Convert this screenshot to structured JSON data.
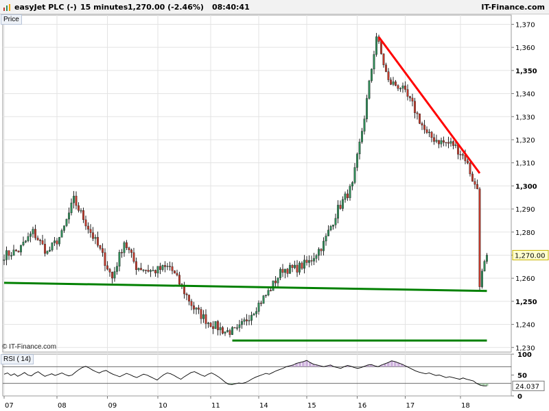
{
  "header": {
    "instrument": "easyJet PLC (-)",
    "interval": "15 minutes",
    "quote": "1,270.00 (-2.46%)",
    "time": "08:40:41",
    "brand": "IT-Finance.com"
  },
  "panels": {
    "price_label": "Price",
    "rsi_label": "RSI ( 14)",
    "copyright": "© IT-Finance.com"
  },
  "colors": {
    "bull": "#2e8b57",
    "bear": "#c0392b",
    "resistance": "#ff0000",
    "support": "#008000",
    "rsi_line": "#000000",
    "rsi_overbought_fill": "#c8a8d8",
    "rsi_oversold_fill": "#9cc8a0"
  },
  "chart_data": [
    {
      "type": "candlestick",
      "title": "",
      "ylim": [
        1228,
        1374
      ],
      "y_ticks": [
        "1,230",
        "1,240",
        "1,250",
        "1,260",
        "1,270",
        "1,280",
        "1,290",
        "1,300",
        "1,310",
        "1,320",
        "1,330",
        "1,340",
        "1,350",
        "1,360",
        "1,370"
      ],
      "bold_y_ticks": [
        "1,250",
        "1,300",
        "1,350"
      ],
      "x_tick_labels": [
        "07",
        "08",
        "09",
        "10",
        "11",
        "14",
        "15",
        "16",
        "17",
        "18"
      ],
      "last_price_label": "1,270.00",
      "last_price": 1270,
      "grid": true,
      "close_path": [
        [
          0,
          1270
        ],
        [
          6,
          1272
        ],
        [
          12,
          1280
        ],
        [
          18,
          1271
        ],
        [
          24,
          1279
        ],
        [
          29,
          1294
        ],
        [
          34,
          1284
        ],
        [
          40,
          1272
        ],
        [
          45,
          1260
        ],
        [
          50,
          1276
        ],
        [
          55,
          1265
        ],
        [
          62,
          1263
        ],
        [
          69,
          1265
        ],
        [
          79,
          1247
        ],
        [
          85,
          1241
        ],
        [
          92,
          1237
        ],
        [
          97,
          1237
        ],
        [
          103,
          1245
        ],
        [
          110,
          1254
        ],
        [
          116,
          1264
        ],
        [
          121,
          1264
        ],
        [
          127,
          1267
        ],
        [
          133,
          1275
        ],
        [
          139,
          1290
        ],
        [
          145,
          1300
        ],
        [
          150,
          1330
        ],
        [
          155,
          1365
        ],
        [
          160,
          1345
        ],
        [
          165,
          1343
        ],
        [
          170,
          1335
        ],
        [
          176,
          1322
        ],
        [
          182,
          1319
        ],
        [
          187,
          1318
        ],
        [
          192,
          1312
        ],
        [
          196,
          1300
        ],
        [
          197,
          1299
        ],
        [
          198,
          1258
        ],
        [
          201,
          1270
        ]
      ],
      "day_boundaries": [
        0,
        22,
        43,
        64,
        86,
        106,
        126,
        147,
        167,
        190
      ],
      "trendlines": [
        {
          "name": "resistance",
          "color_key": "resistance",
          "start": [
            156,
            1364.5
          ],
          "end": [
            198,
            1305.5
          ]
        },
        {
          "name": "support-upper",
          "color_key": "support",
          "start": [
            0,
            1258
          ],
          "end": [
            201,
            1254.5
          ]
        },
        {
          "name": "support-lower",
          "color_key": "support",
          "start": [
            95,
            1233
          ],
          "end": [
            201,
            1233
          ]
        }
      ]
    },
    {
      "type": "line",
      "title": "",
      "series_name": "RSI ( 14)",
      "ylim": [
        0,
        100
      ],
      "y_ticks": [
        "100",
        "50",
        "0"
      ],
      "overbought": 70,
      "oversold": 30,
      "last_value_label": "24.037",
      "last_value": 24.037,
      "values": [
        52,
        55,
        49,
        53,
        47,
        51,
        56,
        50,
        48,
        54,
        58,
        52,
        47,
        50,
        53,
        49,
        52,
        55,
        51,
        48,
        50,
        57,
        63,
        68,
        71,
        67,
        62,
        58,
        55,
        59,
        61,
        56,
        52,
        49,
        46,
        50,
        54,
        51,
        47,
        44,
        48,
        52,
        50,
        46,
        42,
        38,
        45,
        51,
        55,
        53,
        49,
        44,
        40,
        46,
        51,
        56,
        58,
        54,
        50,
        47,
        52,
        55,
        51,
        46,
        40,
        33,
        28,
        27,
        29,
        31,
        30,
        32,
        36,
        41,
        45,
        48,
        51,
        54,
        52,
        56,
        60,
        63,
        66,
        70,
        72,
        74,
        78,
        80,
        82,
        85,
        80,
        76,
        74,
        72,
        70,
        72,
        74,
        70,
        68,
        66,
        70,
        73,
        71,
        68,
        66,
        68,
        71,
        74,
        75,
        72,
        70,
        74,
        77,
        80,
        84,
        82,
        79,
        76,
        72,
        68,
        64,
        60,
        57,
        55,
        53,
        55,
        52,
        49,
        50,
        47,
        44,
        46,
        44,
        42,
        40,
        43,
        40,
        38,
        36,
        30,
        26,
        24,
        24
      ]
    }
  ]
}
